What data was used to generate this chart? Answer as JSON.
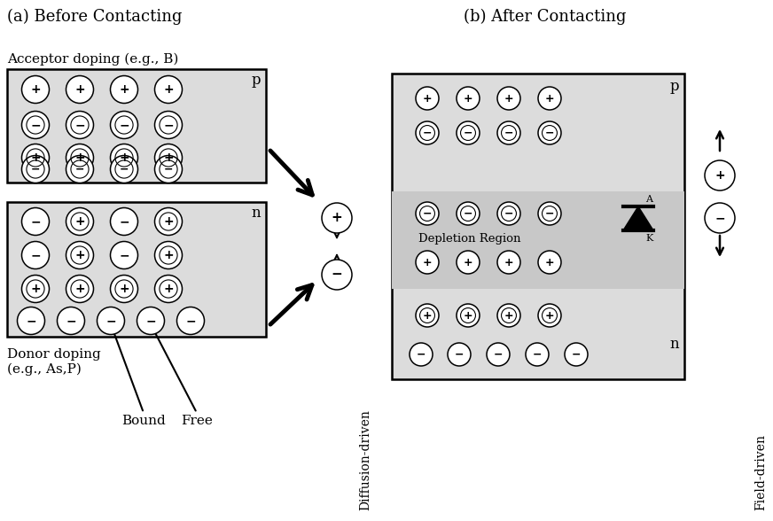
{
  "title_a": "(a) Before Contacting",
  "title_b": "(b) After Contacting",
  "acceptor_label": "Acceptor doping (e.g., B)",
  "donor_label": "Donor doping\n(e.g., As,P)",
  "bound_label": "Bound",
  "free_label": "Free",
  "diffusion_label": "Diffusion-driven",
  "field_label": "Field-driven",
  "depletion_label": "Depletion Region",
  "p_label": "p",
  "n_label": "n",
  "bg_color": "#dcdcdc",
  "depl_color": "#c8c8c8",
  "white": "#ffffff",
  "black": "#000000"
}
